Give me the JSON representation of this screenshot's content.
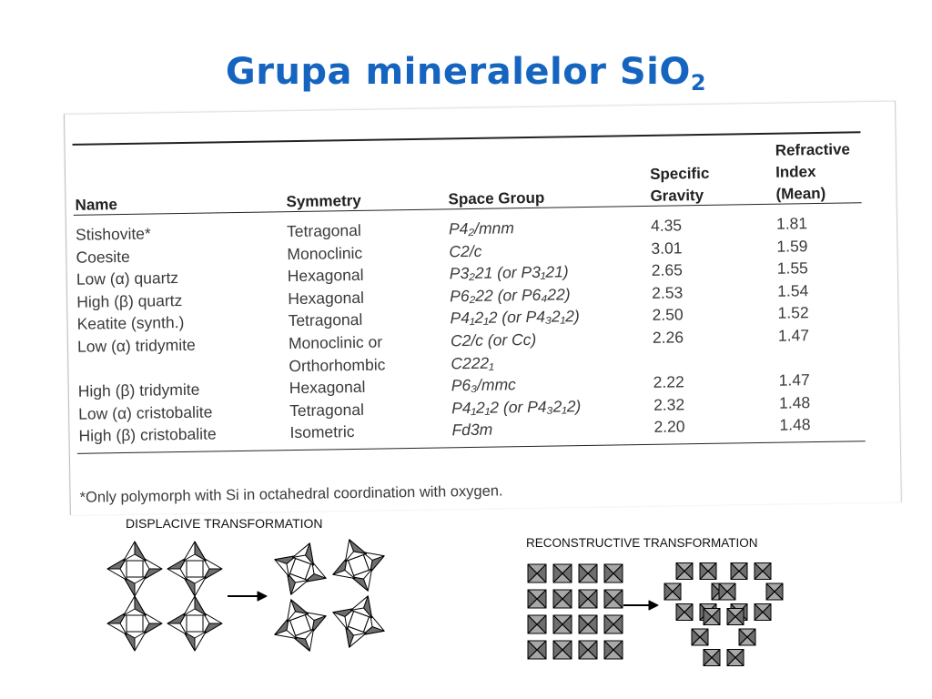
{
  "title": {
    "text": "Grupa mineralelor SiO",
    "subscript": "2"
  },
  "table": {
    "headers": {
      "name": "Name",
      "symmetry": "Symmetry",
      "space_group": "Space Group",
      "gravity_1": "Specific",
      "gravity_2": "Gravity",
      "index_1": "Refractive",
      "index_2": "Index",
      "index_3": "(Mean)"
    },
    "rows": [
      {
        "name": "Stishovite*",
        "symmetry": "Tetragonal",
        "space_group": "P4₂/mnm",
        "gravity": "4.35",
        "index": "1.81"
      },
      {
        "name": "Coesite",
        "symmetry": "Monoclinic",
        "space_group": "C2/c",
        "gravity": "3.01",
        "index": "1.59"
      },
      {
        "name": "Low (α) quartz",
        "symmetry": "Hexagonal",
        "space_group": "P3₂21 (or P3₁21)",
        "gravity": "2.65",
        "index": "1.55"
      },
      {
        "name": "High (β) quartz",
        "symmetry": "Hexagonal",
        "space_group": "P6₂22 (or P6₄22)",
        "gravity": "2.53",
        "index": "1.54"
      },
      {
        "name": "Keatite (synth.)",
        "symmetry": "Tetragonal",
        "space_group": "P4₁2₁2 (or P4₃2₁2)",
        "gravity": "2.50",
        "index": "1.52"
      },
      {
        "name": "Low (α) tridymite",
        "symmetry": "Monoclinic or",
        "space_group": "C2/c (or Cc)",
        "gravity": "2.26",
        "index": "1.47"
      },
      {
        "name": "",
        "symmetry": "Orthorhombic",
        "space_group": "C222₁",
        "gravity": "",
        "index": ""
      },
      {
        "name": "High (β) tridymite",
        "symmetry": "Hexagonal",
        "space_group": "P6₃/mmc",
        "gravity": "2.22",
        "index": "1.47"
      },
      {
        "name": "Low (α) cristobalite",
        "symmetry": "Tetragonal",
        "space_group": "P4₁2₁2 (or P4₃2₁2)",
        "gravity": "2.32",
        "index": "1.48"
      },
      {
        "name": "High (β) cristobalite",
        "symmetry": "Isometric",
        "space_group": "Fd3m",
        "gravity": "2.20",
        "index": "1.48"
      }
    ],
    "footnote": "*Only polymorph with Si in octahedral coordination with oxygen."
  },
  "diagrams": {
    "displacive_label": "DISPLACIVE TRANSFORMATION",
    "reconstructive_label": "RECONSTRUCTIVE TRANSFORMATION"
  },
  "colors": {
    "title": "#1565c0",
    "tetra_dark": "#6e6e6e",
    "tetra_mid": "#a8a8a8"
  }
}
